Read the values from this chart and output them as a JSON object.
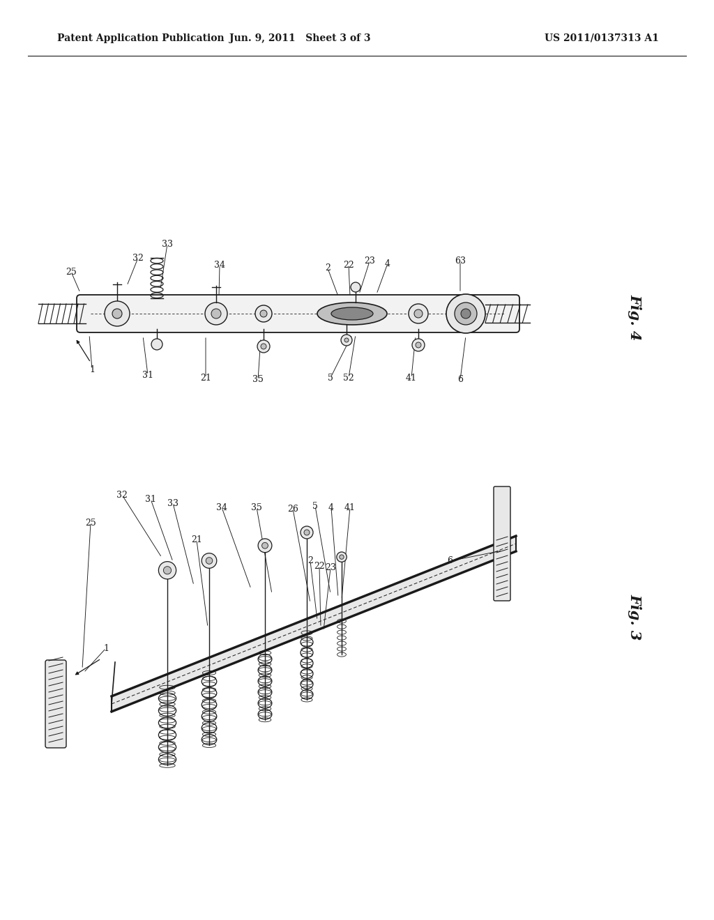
{
  "bg_color": "#ffffff",
  "header_left": "Patent Application Publication",
  "header_center": "Jun. 9, 2011   Sheet 3 of 3",
  "header_right": "US 2011/0137313 A1",
  "fig4_label": "Fig. 4",
  "fig3_label": "Fig. 3",
  "lc": "#1a1a1a",
  "gray_light": "#e8e8e8",
  "gray_mid": "#c0c0c0",
  "gray_dark": "#888888",
  "header_fontsize": 10,
  "fig_label_fontsize": 15,
  "annot_fontsize": 9
}
